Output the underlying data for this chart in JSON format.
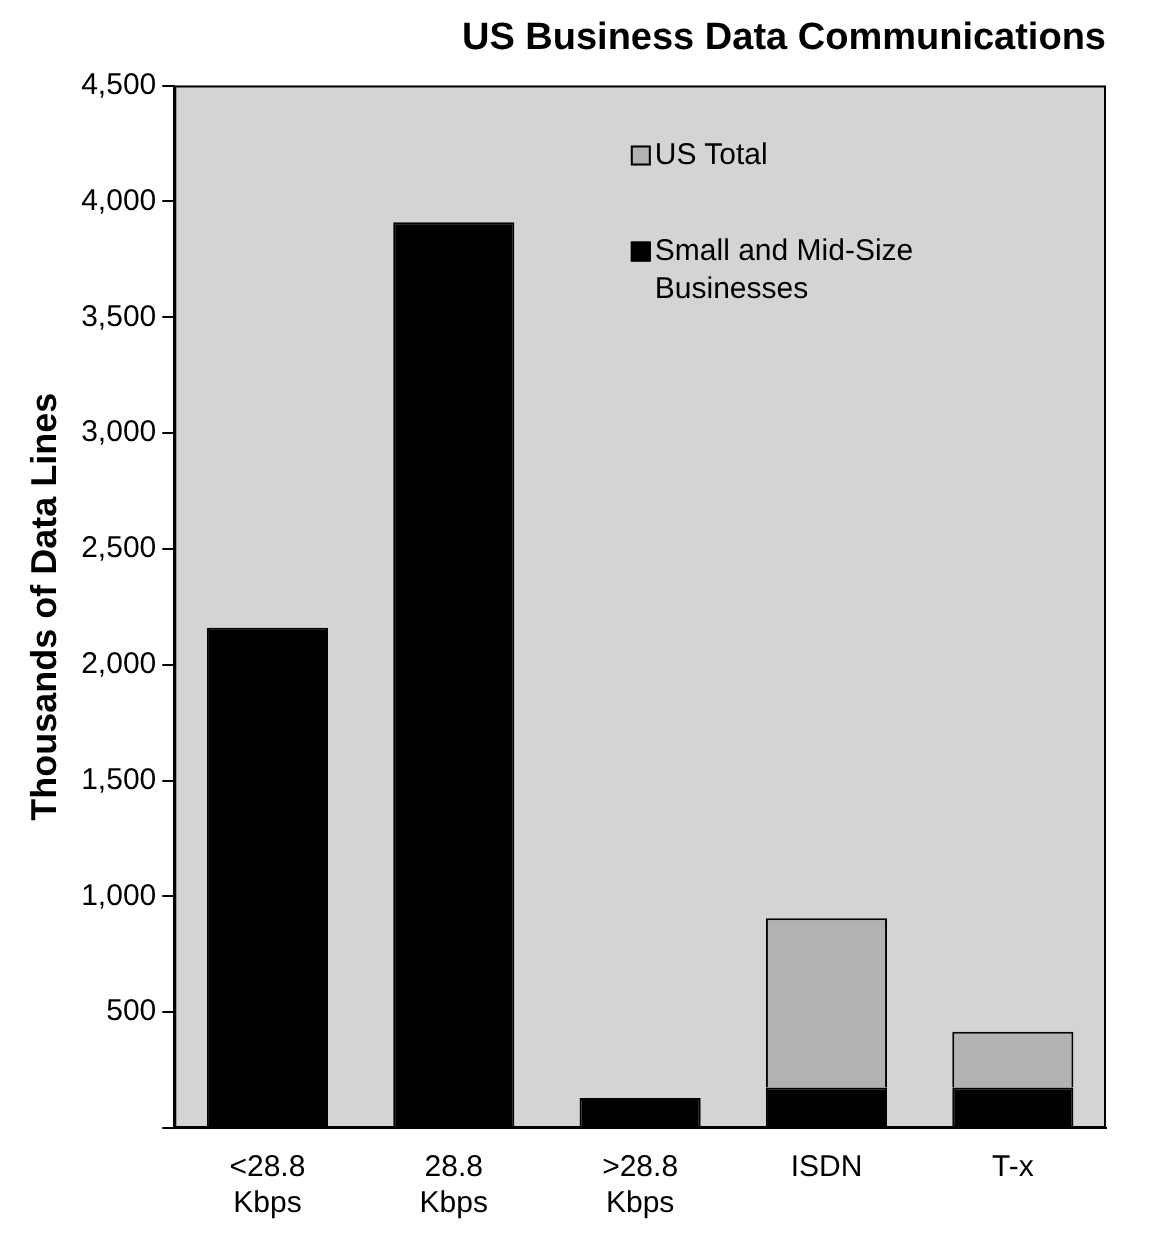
{
  "chart_data": {
    "type": "bar",
    "title": "US Business Data Communications",
    "ylabel": "Thousands of Data Lines",
    "categories": [
      "<28.8 Kbps",
      "28.8 Kbps",
      ">28.8 Kbps",
      "ISDN",
      "T-x"
    ],
    "series": [
      {
        "name": "Small and Mid-Size Businesses",
        "color": "#000000",
        "values": [
          2160,
          3910,
          130,
          175,
          175
        ]
      },
      {
        "name": "US Total",
        "color": "#b2b2b2",
        "values": [
          0,
          0,
          0,
          730,
          240
        ]
      }
    ],
    "stacked": true,
    "ylim": [
      0,
      4500
    ],
    "yticks": [
      {
        "value": 0,
        "label": null
      },
      500,
      {
        "value": 1000,
        "label": "1,000"
      },
      {
        "value": 1500,
        "label": "1,500"
      },
      {
        "value": 2000,
        "label": "2,000"
      },
      {
        "value": 2500,
        "label": "2,500"
      },
      {
        "value": 3000,
        "label": "3,000"
      },
      {
        "value": 3500,
        "label": "3,500"
      },
      {
        "value": 4000,
        "label": "4,000"
      },
      {
        "value": 4500,
        "label": "4,500"
      }
    ],
    "grid": false,
    "legend": "top right"
  }
}
